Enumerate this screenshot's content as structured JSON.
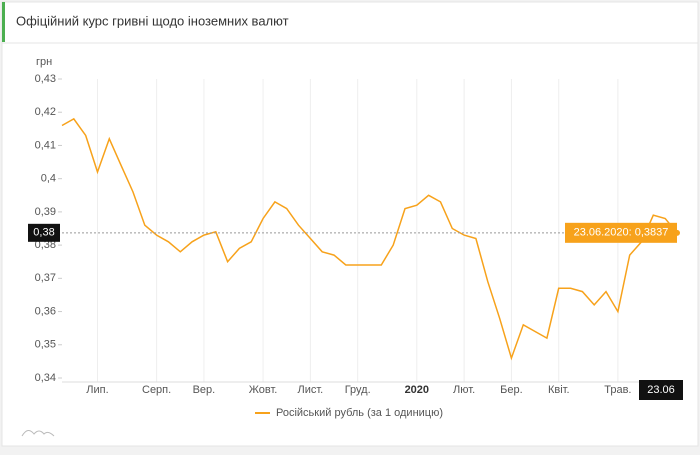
{
  "chart_data": {
    "type": "line",
    "title": "Офіційний курс гривні щодо іноземних валют",
    "y_unit": "грн",
    "categories": [
      null,
      null,
      null,
      "Лип.",
      null,
      null,
      null,
      null,
      "Серп.",
      null,
      null,
      null,
      "Вер.",
      null,
      null,
      null,
      null,
      "Жовт.",
      null,
      null,
      null,
      "Лист.",
      null,
      null,
      null,
      "Груд.",
      null,
      null,
      null,
      null,
      "2020",
      null,
      null,
      null,
      "Лют.",
      null,
      null,
      null,
      "Бер.",
      null,
      null,
      null,
      "Квіт.",
      null,
      null,
      null,
      null,
      "Трав.",
      null,
      null,
      null,
      null,
      "23.06"
    ],
    "series": [
      {
        "name": "Російський рубль (за 1 одиницю)",
        "color": "#f7a21b",
        "values": [
          0.416,
          0.418,
          0.413,
          0.402,
          0.412,
          0.404,
          0.396,
          0.386,
          0.383,
          0.381,
          0.378,
          0.381,
          0.383,
          0.384,
          0.375,
          0.379,
          0.381,
          0.388,
          0.393,
          0.391,
          0.386,
          0.382,
          0.378,
          0.377,
          0.374,
          0.374,
          0.374,
          0.374,
          0.38,
          0.391,
          0.392,
          0.395,
          0.393,
          0.385,
          0.383,
          0.382,
          0.369,
          0.358,
          0.346,
          0.356,
          0.354,
          0.352,
          0.367,
          0.367,
          0.366,
          0.362,
          0.366,
          0.36,
          0.377,
          0.381,
          0.389,
          0.388,
          0.3837
        ]
      }
    ],
    "ylim": [
      0.34,
      0.43
    ],
    "yticks": [
      {
        "value": 0.34,
        "label": "0,34"
      },
      {
        "value": 0.35,
        "label": "0,35"
      },
      {
        "value": 0.36,
        "label": "0,36"
      },
      {
        "value": 0.37,
        "label": "0,37"
      },
      {
        "value": 0.38,
        "label": "0,38"
      },
      {
        "value": 0.39,
        "label": "0,39"
      },
      {
        "value": 0.4,
        "label": "0,4"
      },
      {
        "value": 0.41,
        "label": "0,41"
      },
      {
        "value": 0.42,
        "label": "0,42"
      },
      {
        "value": 0.43,
        "label": "0,43"
      }
    ],
    "crosshair": {
      "y_label": "0,38",
      "tooltip": "23.06.2020: 0,3837"
    },
    "grid": true
  }
}
